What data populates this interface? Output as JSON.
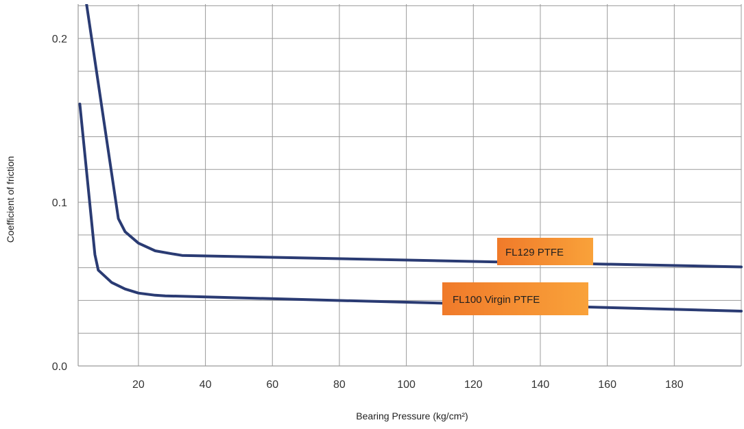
{
  "chart_data": {
    "type": "line",
    "title": "",
    "xlabel": "Bearing Pressure (kg/cm²)",
    "ylabel": "Coefficient of friction",
    "xlim": [
      2,
      200
    ],
    "ylim": [
      0,
      0.221
    ],
    "x_ticks": [
      20,
      40,
      60,
      80,
      100,
      120,
      140,
      160,
      180
    ],
    "x_tick_labels": [
      "20",
      "40",
      "60",
      "80",
      "100",
      "120",
      "140",
      "160",
      "180"
    ],
    "x_grid": [
      2,
      20,
      40,
      60,
      80,
      100,
      120,
      140,
      160,
      180,
      200
    ],
    "y_ticks": [
      0,
      0.1,
      0.2
    ],
    "y_tick_labels": [
      "0.0",
      "0.1",
      "0.2"
    ],
    "y_grid": [
      0.02,
      0.04,
      0.06,
      0.08,
      0.1,
      0.12,
      0.14,
      0.16,
      0.18,
      0.2,
      0.22
    ],
    "grid": true,
    "line_color": "#2a3b73",
    "label_gradient": [
      "#f07a2a",
      "#f9a23a"
    ],
    "series": [
      {
        "name": "FL129 PTFE",
        "x": [
          4.5,
          14,
          16,
          20,
          25,
          30,
          33,
          200
        ],
        "y": [
          0.221,
          0.09,
          0.082,
          0.075,
          0.0703,
          0.0685,
          0.0675,
          0.0605
        ]
      },
      {
        "name": "FL100 Virgin PTFE",
        "x": [
          2.5,
          7,
          8,
          12,
          16,
          20,
          25,
          28,
          200
        ],
        "y": [
          0.16,
          0.068,
          0.0585,
          0.051,
          0.047,
          0.0445,
          0.0432,
          0.0428,
          0.0335
        ]
      }
    ]
  }
}
